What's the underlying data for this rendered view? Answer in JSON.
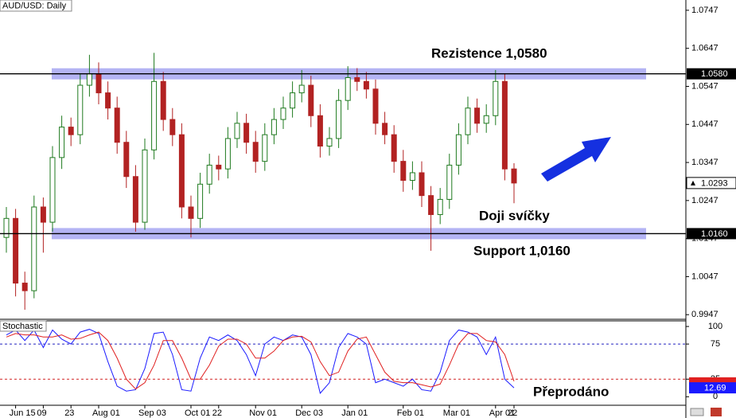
{
  "chart_data": [
    {
      "type": "candlestick",
      "title": "AUD/USD: Daily",
      "open": [
        1.015,
        1.02,
        1.003,
        1.001,
        1.023,
        1.019,
        1.036,
        1.044,
        1.042,
        1.055,
        1.058,
        1.053,
        1.049,
        1.04,
        1.031,
        1.019,
        1.038,
        1.056,
        1.046,
        1.042,
        1.023,
        1.02,
        1.029,
        1.034,
        1.033,
        1.041,
        1.045,
        1.04,
        1.035,
        1.042,
        1.046,
        1.049,
        1.053,
        1.055,
        1.047,
        1.039,
        1.041,
        1.051,
        1.057,
        1.056,
        1.054,
        1.045,
        1.042,
        1.035,
        1.03,
        1.032,
        1.026,
        1.021,
        1.025,
        1.034,
        1.042,
        1.049,
        1.045,
        1.047,
        1.056,
        1.033
      ],
      "high": [
        1.023,
        1.0225,
        1.006,
        1.026,
        1.0255,
        1.039,
        1.047,
        1.0465,
        1.058,
        1.063,
        1.061,
        1.056,
        1.052,
        1.043,
        1.034,
        1.041,
        1.0635,
        1.0585,
        1.049,
        1.045,
        1.026,
        1.032,
        1.037,
        1.0365,
        1.044,
        1.048,
        1.0475,
        1.043,
        1.045,
        1.049,
        1.052,
        1.056,
        1.059,
        1.0575,
        1.05,
        1.044,
        1.054,
        1.06,
        1.0595,
        1.0585,
        1.0565,
        1.048,
        1.0445,
        1.038,
        1.035,
        1.035,
        1.0285,
        1.028,
        1.037,
        1.045,
        1.052,
        1.0515,
        1.05,
        1.059,
        1.058,
        1.0345
      ],
      "low": [
        1.011,
        0.9995,
        0.996,
        0.999,
        1.011,
        1.0165,
        1.033,
        1.039,
        1.0395,
        1.052,
        1.05,
        1.046,
        1.037,
        1.028,
        1.0165,
        1.017,
        1.0355,
        1.043,
        1.039,
        1.02,
        1.015,
        1.0175,
        1.0265,
        1.03,
        1.0305,
        1.0385,
        1.037,
        1.032,
        1.0325,
        1.0395,
        1.0435,
        1.0465,
        1.0505,
        1.044,
        1.036,
        1.0365,
        1.0385,
        1.0485,
        1.0535,
        1.0515,
        1.042,
        1.0395,
        1.032,
        1.027,
        1.0275,
        1.023,
        1.0115,
        1.0185,
        1.0225,
        1.0315,
        1.0395,
        1.0425,
        1.0425,
        1.0445,
        1.03,
        1.024
      ],
      "close": [
        1.02,
        1.003,
        1.001,
        1.023,
        1.019,
        1.036,
        1.044,
        1.042,
        1.055,
        1.058,
        1.053,
        1.049,
        1.04,
        1.031,
        1.019,
        1.038,
        1.056,
        1.046,
        1.042,
        1.023,
        1.02,
        1.029,
        1.034,
        1.033,
        1.041,
        1.045,
        1.04,
        1.035,
        1.042,
        1.046,
        1.049,
        1.053,
        1.055,
        1.047,
        1.039,
        1.041,
        1.051,
        1.057,
        1.056,
        1.054,
        1.045,
        1.042,
        1.035,
        1.03,
        1.032,
        1.026,
        1.021,
        1.025,
        1.034,
        1.042,
        1.049,
        1.045,
        1.047,
        1.056,
        1.033,
        1.0293
      ],
      "up_color": "#1f7a1f",
      "down_color": "#b22222",
      "ylim": [
        0.9937,
        1.0774
      ],
      "yticks": [
        1.0747,
        1.0647,
        1.0547,
        1.0447,
        1.0347,
        1.0247,
        1.0147,
        1.0047,
        0.9947
      ],
      "hlines": [
        {
          "value": 1.058,
          "label": "1.0580"
        },
        {
          "value": 1.016,
          "label": "1.0160"
        }
      ],
      "last": 1.0293,
      "annotations": [
        "Rezistence 1,0580",
        "Doji svíčky",
        "Support 1,0160"
      ]
    },
    {
      "type": "line",
      "title": "Stochastic",
      "categories": [
        null,
        "Jun 15",
        null,
        null,
        "09",
        null,
        null,
        "23",
        null,
        null,
        "Aug 01",
        null,
        null,
        null,
        null,
        "Sep 03",
        null,
        null,
        null,
        null,
        "Oct 01",
        null,
        null,
        "22",
        null,
        null,
        null,
        "Nov 01",
        null,
        null,
        null,
        null,
        "Dec 03",
        null,
        null,
        null,
        null,
        "Jan 01",
        null,
        null,
        null,
        null,
        null,
        "Feb 01",
        null,
        null,
        null,
        null,
        "Mar 01",
        null,
        null,
        null,
        null,
        "Apr 01",
        null,
        "22"
      ],
      "series": [
        {
          "color": "#1a1aff",
          "values": [
            88,
            95,
            80,
            95,
            70,
            95,
            82,
            75,
            92,
            96,
            90,
            50,
            15,
            8,
            10,
            40,
            90,
            92,
            60,
            10,
            8,
            55,
            85,
            80,
            88,
            80,
            60,
            30,
            75,
            85,
            80,
            88,
            85,
            60,
            5,
            20,
            70,
            90,
            85,
            75,
            20,
            25,
            20,
            15,
            25,
            10,
            8,
            35,
            80,
            95,
            92,
            85,
            60,
            85,
            25,
            12.69
          ]
        },
        {
          "color": "#e02020",
          "values": [
            85,
            90,
            88,
            88,
            85,
            85,
            88,
            82,
            83,
            88,
            92,
            80,
            55,
            25,
            11,
            20,
            45,
            80,
            80,
            55,
            25,
            25,
            45,
            72,
            82,
            82,
            75,
            55,
            55,
            65,
            80,
            85,
            86,
            78,
            50,
            30,
            35,
            65,
            82,
            85,
            60,
            35,
            22,
            20,
            20,
            17,
            14,
            18,
            45,
            75,
            90,
            90,
            80,
            78,
            60,
            22
          ]
        }
      ],
      "ylim": [
        -11,
        108
      ],
      "yticks": [
        0,
        25,
        75,
        100
      ],
      "levels": [
        {
          "value": 75,
          "color": "#2020c0"
        },
        {
          "value": 25,
          "color": "#d02020"
        }
      ],
      "annotations": [
        "Přeprodáno"
      ]
    }
  ]
}
